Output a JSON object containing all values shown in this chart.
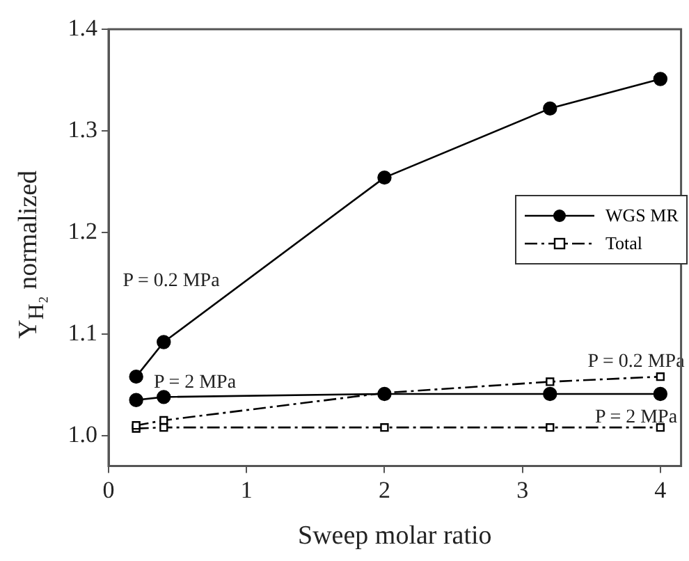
{
  "chart_data": {
    "type": "line",
    "xlabel": "Sweep molar ratio",
    "ylabel": "Y$_{H₂}$ normalized",
    "x": [
      0.2,
      0.4,
      2,
      3.2,
      4
    ],
    "series": [
      {
        "name": "WGS MR",
        "color": "#000000",
        "marker": "circle",
        "line_style": "solid",
        "values": [
          1.058,
          1.092,
          1.254,
          1.322,
          1.351
        ]
      },
      {
        "color": "#000000",
        "marker": "circle",
        "line_style": "solid",
        "values": [
          1.035,
          1.038,
          1.041,
          1.041,
          1.041
        ]
      },
      {
        "name": "Total",
        "color": "#000000",
        "marker": "square",
        "line_style": "dashed",
        "values": [
          1.01,
          1.015,
          1.042,
          1.053,
          1.058
        ]
      },
      {
        "color": "#000000",
        "marker": "square",
        "line_style": "dashed",
        "values": [
          1.007,
          1.008,
          1.008,
          1.008,
          1.008
        ]
      }
    ],
    "xlim": [
      0,
      4.15
    ],
    "xticks": [
      0,
      1,
      2,
      3,
      4
    ],
    "ylim": [
      0.97,
      1.4
    ],
    "yticks": [
      {
        "value": 1.0,
        "label": "1.0"
      },
      1.1,
      1.2,
      1.3,
      {
        "value": 1.4,
        "label": "1.4"
      }
    ],
    "grid": false,
    "legend": "right",
    "annotations": [
      "P = 0.2 MPa",
      "P = 2 MPa",
      "P = 0.2 MPa",
      "P = 2 MPa"
    ]
  }
}
